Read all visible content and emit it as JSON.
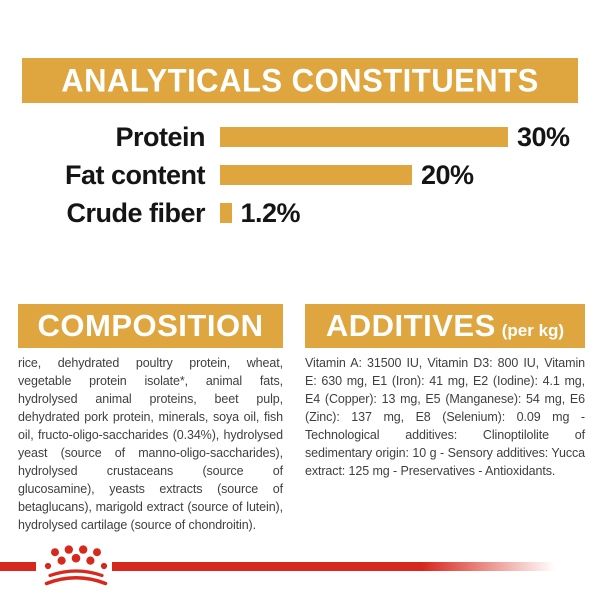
{
  "colors": {
    "gold": "#DFA640",
    "red": "#D7281D",
    "heading_text": "#FFFFFF",
    "label_text": "#151515",
    "body_text": "#3F3F3F"
  },
  "header": {
    "title": "ANALYTICALS CONSTITUENTS"
  },
  "chart_data": {
    "type": "bar",
    "title": "ANALYTICALS CONSTITUENTS",
    "categories": [
      "Protein",
      "Fat content",
      "Crude fiber"
    ],
    "values": [
      30,
      20,
      1.2
    ],
    "value_labels": [
      "30%",
      "20%",
      "1.2%"
    ],
    "unit": "%",
    "xlim": [
      0,
      30
    ],
    "bar_color": "#DFA640",
    "orientation": "horizontal",
    "grid": false,
    "legend": false
  },
  "sections": {
    "composition": {
      "title": "COMPOSITION",
      "body": "rice, dehydrated poultry protein, wheat, vegetable protein isolate*, animal fats, hydrolysed animal proteins, beet pulp, dehydrated pork protein, minerals, soya oil, fish oil, fructo-oligo-saccharides (0.34%), hydrolysed yeast (source of manno-oligo-saccharides), hydrolysed crustaceans (source of glucosamine), yeasts extracts (source of betaglucans), marigold extract (source of lutein), hydrolysed cartilage (source of chondroitin)."
    },
    "additives": {
      "title": "ADDITIVES",
      "title_suffix": "(per kg)",
      "body": "Vitamin A: 31500 IU, Vitamin D3: 800 IU, Vitamin E: 630 mg, E1 (Iron): 41 mg, E2 (Iodine): 4.1 mg, E4 (Copper): 13 mg, E5 (Manganese): 54 mg, E6 (Zinc): 137 mg, E8 (Selenium): 0.09 mg - Technological additives: Clinoptilolite of sedimentary origin: 10 g - Sensory additives: Yucca extract: 125 mg - Preservatives - Antioxidants."
    }
  },
  "footer": {
    "logo": "royal-canin-crown"
  }
}
